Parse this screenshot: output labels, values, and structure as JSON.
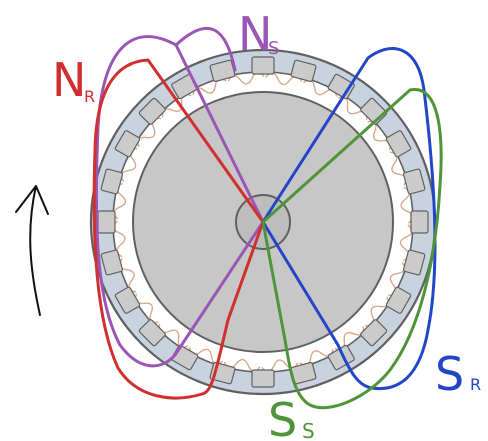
{
  "labels": {
    "north_rotor": {
      "main": "N",
      "sub": "R"
    },
    "north_stator": {
      "main": "N",
      "sub": "S"
    },
    "south_stator": {
      "main": "S",
      "sub": "S"
    },
    "south_rotor": {
      "main": "S",
      "sub": "R"
    }
  },
  "colors": {
    "north_rotor": "#d03030",
    "north_stator": "#9b55b5",
    "south_stator": "#4e9438",
    "south_rotor": "#2345c8",
    "stator_ring": "#c8d3df",
    "rotor_disc": "#c7c7c7",
    "shaft": "#bdbdbd",
    "teeth": "#cbcbcb",
    "winding": "#d8a98a",
    "outline": "#606060",
    "arrow": "#111111"
  },
  "rotation": "counterclockwise",
  "stator_slot_count": 24
}
